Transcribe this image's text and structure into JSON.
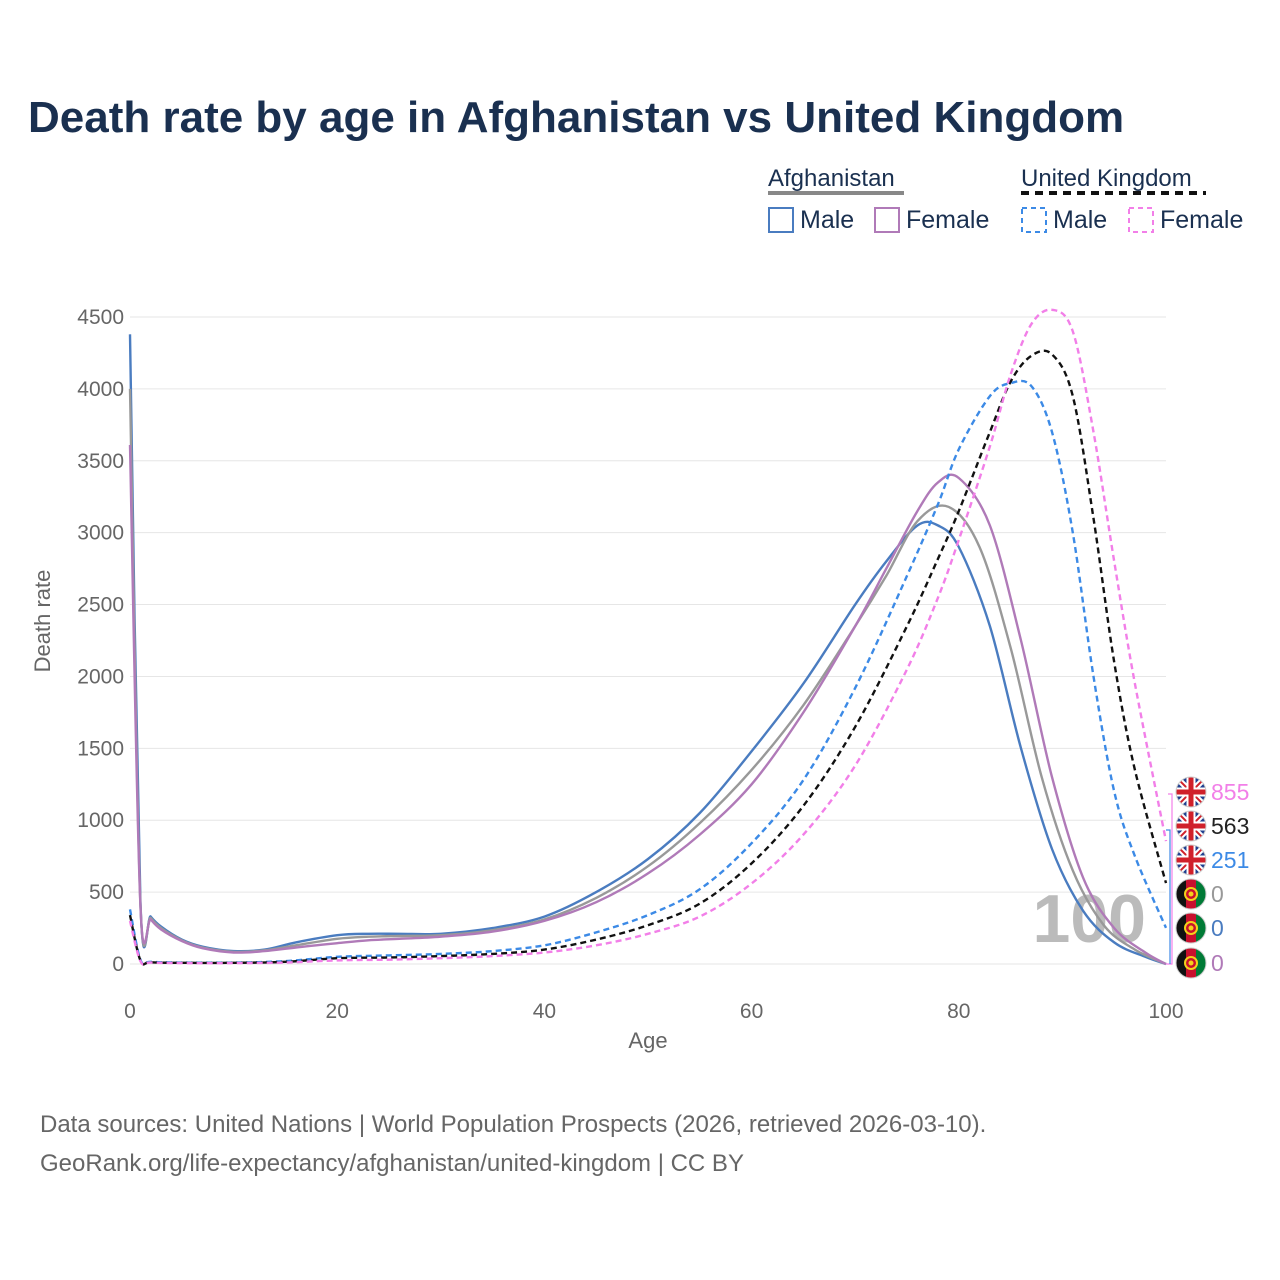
{
  "title": "Death rate by age in Afghanistan vs United Kingdom",
  "legend": {
    "groups": [
      {
        "label": "Afghanistan",
        "line_color": "#888888",
        "dash": false,
        "items": [
          {
            "label": "Male",
            "color": "#4a7cc0"
          },
          {
            "label": "Female",
            "color": "#b07ab8"
          }
        ]
      },
      {
        "label": "United Kingdom",
        "line_color": "#111111",
        "dash": true,
        "items": [
          {
            "label": "Male",
            "color": "#3c8ae6"
          },
          {
            "label": "Female",
            "color": "#f27fe8"
          }
        ]
      }
    ]
  },
  "age_watermark": "100",
  "end_labels": [
    {
      "value": "855",
      "color": "#f27fe8",
      "flag": "uk-flag-icon"
    },
    {
      "value": "563",
      "color": "#222222",
      "flag": "uk-flag-icon"
    },
    {
      "value": "251",
      "color": "#3c8ae6",
      "flag": "uk-flag-icon"
    },
    {
      "value": "0",
      "color": "#999999",
      "flag": "afghanistan-flag-icon"
    },
    {
      "value": "0",
      "color": "#4a7cc0",
      "flag": "afghanistan-flag-icon"
    },
    {
      "value": "0",
      "color": "#b07ab8",
      "flag": "afghanistan-flag-icon"
    }
  ],
  "footer": {
    "line1": "Data sources: United Nations | World Population Prospects (2026, retrieved 2026-03-10).",
    "line2": "GeoRank.org/life-expectancy/afghanistan/united-kingdom | CC BY"
  },
  "chart_data": {
    "type": "line",
    "title": "Death rate by age in Afghanistan vs United Kingdom",
    "xlabel": "Age",
    "ylabel": "Death rate",
    "xlim": [
      0,
      100
    ],
    "ylim": [
      0,
      4500
    ],
    "xticks": [
      0,
      20,
      40,
      60,
      80,
      100
    ],
    "yticks": [
      0,
      500,
      1000,
      1500,
      2000,
      2500,
      3000,
      3500,
      4000,
      4500
    ],
    "grid": true,
    "series": [
      {
        "name": "Afghanistan Male",
        "color": "#4a7cc0",
        "dash": false,
        "x": [
          0,
          1,
          2,
          3,
          5,
          7,
          10,
          13,
          16,
          20,
          23,
          26,
          30,
          35,
          40,
          45,
          50,
          55,
          60,
          65,
          70,
          73,
          76,
          78,
          80,
          83,
          86,
          89,
          92,
          95,
          98,
          100
        ],
        "y": [
          4380,
          440,
          330,
          260,
          170,
          120,
          90,
          100,
          150,
          200,
          210,
          210,
          210,
          250,
          330,
          500,
          730,
          1050,
          1480,
          1950,
          2500,
          2800,
          3050,
          3050,
          2900,
          2350,
          1500,
          800,
          370,
          150,
          50,
          0
        ]
      },
      {
        "name": "Afghanistan Both",
        "color": "#999999",
        "dash": false,
        "x": [
          0,
          1,
          2,
          3,
          5,
          7,
          10,
          13,
          16,
          20,
          23,
          26,
          30,
          35,
          40,
          45,
          50,
          55,
          60,
          65,
          70,
          73,
          76,
          79,
          82,
          85,
          88,
          91,
          94,
          97,
          100
        ],
        "y": [
          4000,
          420,
          320,
          250,
          165,
          115,
          85,
          95,
          130,
          175,
          190,
          195,
          200,
          235,
          310,
          460,
          680,
          980,
          1350,
          1800,
          2350,
          2700,
          3080,
          3180,
          2900,
          2200,
          1300,
          650,
          270,
          100,
          0
        ]
      },
      {
        "name": "Afghanistan Female",
        "color": "#b07ab8",
        "dash": false,
        "x": [
          0,
          1,
          2,
          3,
          5,
          7,
          10,
          13,
          16,
          20,
          23,
          26,
          30,
          35,
          40,
          45,
          50,
          55,
          60,
          65,
          70,
          73,
          76,
          78,
          80,
          83,
          86,
          89,
          92,
          95,
          98,
          100
        ],
        "y": [
          3610,
          410,
          310,
          240,
          160,
          110,
          80,
          90,
          115,
          145,
          165,
          175,
          190,
          225,
          300,
          430,
          630,
          900,
          1250,
          1750,
          2350,
          2750,
          3150,
          3350,
          3380,
          3050,
          2250,
          1300,
          600,
          250,
          80,
          0
        ]
      },
      {
        "name": "United Kingdom Male",
        "color": "#3c8ae6",
        "dash": true,
        "x": [
          0,
          1,
          2,
          5,
          10,
          15,
          20,
          25,
          30,
          35,
          40,
          45,
          50,
          55,
          60,
          65,
          70,
          75,
          78,
          80,
          83,
          85,
          87,
          89,
          91,
          93,
          95,
          97,
          100
        ],
        "y": [
          380,
          30,
          15,
          10,
          10,
          20,
          50,
          60,
          70,
          90,
          130,
          220,
          340,
          520,
          840,
          1280,
          1920,
          2700,
          3200,
          3580,
          3950,
          4040,
          4020,
          3700,
          3000,
          2000,
          1200,
          750,
          251
        ]
      },
      {
        "name": "United Kingdom Both",
        "color": "#111111",
        "dash": true,
        "x": [
          0,
          1,
          2,
          5,
          10,
          15,
          20,
          25,
          30,
          35,
          40,
          45,
          50,
          55,
          60,
          65,
          70,
          75,
          78,
          80,
          83,
          85,
          87,
          89,
          91,
          93,
          95,
          97,
          100
        ],
        "y": [
          340,
          25,
          12,
          8,
          8,
          15,
          40,
          45,
          55,
          70,
          100,
          170,
          270,
          420,
          700,
          1100,
          1650,
          2350,
          2820,
          3150,
          3700,
          4050,
          4230,
          4240,
          3950,
          3100,
          2100,
          1350,
          563
        ]
      },
      {
        "name": "United Kingdom Female",
        "color": "#f27fe8",
        "dash": true,
        "x": [
          0,
          1,
          2,
          5,
          10,
          15,
          20,
          25,
          30,
          35,
          40,
          45,
          50,
          55,
          60,
          65,
          70,
          75,
          78,
          80,
          83,
          85,
          87,
          89,
          91,
          93,
          95,
          97,
          100
        ],
        "y": [
          300,
          20,
          10,
          6,
          6,
          10,
          25,
          30,
          40,
          55,
          80,
          130,
          210,
          330,
          560,
          900,
          1380,
          2050,
          2550,
          2950,
          3600,
          4100,
          4450,
          4550,
          4400,
          3700,
          2800,
          1950,
          855
        ]
      }
    ]
  }
}
